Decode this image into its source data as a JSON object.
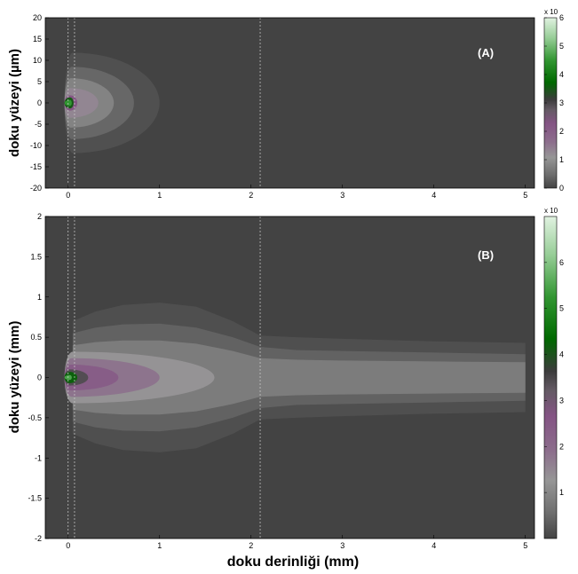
{
  "chart_data": [
    {
      "type": "heatmap",
      "panel_label": "(A)",
      "ylabel": "doku yüzeyi (µm)",
      "xlim": [
        -0.25,
        5.1
      ],
      "ylim": [
        -20,
        20
      ],
      "xticks": [
        "0",
        "1",
        "2",
        "3",
        "4",
        "5"
      ],
      "xtick_values": [
        0,
        1,
        2,
        3,
        4,
        5
      ],
      "yticks": [
        "20",
        "15",
        "10",
        "5",
        "0",
        "-5",
        "-10",
        "-15",
        "-20"
      ],
      "ytick_values": [
        20,
        15,
        10,
        5,
        0,
        -5,
        -10,
        -15,
        -20
      ],
      "layer_boundaries_mm": [
        0,
        0.07,
        2.1
      ],
      "colorbar": {
        "label": "x 10",
        "range": [
          0,
          6
        ],
        "ticks": [
          "6",
          "5",
          "4",
          "3",
          "2",
          "1",
          "0"
        ],
        "tick_values": [
          6,
          5,
          4,
          3,
          2,
          1,
          0
        ]
      },
      "contours": [
        {
          "level": 0.15,
          "peak": 0.05,
          "halfwidth_at_peak": 11.8,
          "depth_extent": 1.0
        },
        {
          "level": 0.4,
          "peak": 0.04,
          "halfwidth_at_peak": 8.5,
          "depth_extent": 0.72
        },
        {
          "level": 0.8,
          "peak": 0.03,
          "halfwidth_at_peak": 5.8,
          "depth_extent": 0.5
        },
        {
          "level": 1.3,
          "peak": 0.02,
          "halfwidth_at_peak": 3.5,
          "depth_extent": 0.33
        },
        {
          "level": 2.2,
          "peak": 0.02,
          "halfwidth_at_peak": 1.8,
          "depth_extent": 0.1
        },
        {
          "level": 3.5,
          "peak": 0.02,
          "halfwidth_at_peak": 1.3,
          "depth_extent": 0.06
        },
        {
          "level": 4.5,
          "peak": 0.02,
          "halfwidth_at_peak": 0.7,
          "depth_extent": 0.04
        }
      ]
    },
    {
      "type": "heatmap",
      "panel_label": "(B)",
      "ylabel": "doku yüzeyi (mm)",
      "xlabel": "doku derinliği (mm)",
      "xlim": [
        -0.25,
        5.1
      ],
      "ylim": [
        -2,
        2
      ],
      "xticks": [
        "0",
        "1",
        "2",
        "3",
        "4",
        "5"
      ],
      "xtick_values": [
        0,
        1,
        2,
        3,
        4,
        5
      ],
      "yticks": [
        "2",
        "1.5",
        "1",
        "0.5",
        "0",
        "-0.5",
        "-1",
        "-1.5",
        "-2"
      ],
      "ytick_values": [
        2,
        1.5,
        1,
        0.5,
        0,
        -0.5,
        -1,
        -1.5,
        -2
      ],
      "layer_boundaries_mm": [
        0,
        0.07,
        2.1
      ],
      "colorbar": {
        "label": "x 10",
        "range": [
          0,
          7
        ],
        "ticks": [
          "6",
          "5",
          "4",
          "3",
          "2",
          "1"
        ],
        "tick_values": [
          6,
          5,
          4,
          3,
          2,
          1
        ]
      },
      "envelopes": [
        {
          "level": 0.15,
          "x": [
            0.05,
            0.3,
            0.6,
            1.0,
            1.4,
            1.8,
            2.1,
            2.5,
            3.0,
            4.0,
            5.0
          ],
          "half_width": [
            0.7,
            0.82,
            0.9,
            0.93,
            0.88,
            0.7,
            0.52,
            0.5,
            0.48,
            0.45,
            0.43
          ]
        },
        {
          "level": 0.4,
          "x": [
            0.05,
            0.3,
            0.6,
            1.0,
            1.4,
            1.8,
            2.1,
            2.5,
            3.0,
            4.0,
            5.0
          ],
          "half_width": [
            0.55,
            0.62,
            0.66,
            0.67,
            0.62,
            0.5,
            0.38,
            0.34,
            0.33,
            0.31,
            0.29
          ]
        },
        {
          "level": 0.8,
          "x": [
            0.05,
            0.3,
            0.6,
            1.0,
            1.4,
            1.8,
            2.1,
            2.5,
            3.0,
            4.0,
            5.0
          ],
          "half_width": [
            0.4,
            0.44,
            0.46,
            0.46,
            0.42,
            0.33,
            0.24,
            0.22,
            0.21,
            0.2,
            0.19
          ]
        }
      ],
      "core": [
        {
          "level": 1.3,
          "peak": 0.05,
          "half_width": 0.32,
          "depth_extent": 1.6
        },
        {
          "level": 1.8,
          "peak": 0.04,
          "half_width": 0.24,
          "depth_extent": 1.0
        },
        {
          "level": 2.4,
          "peak": 0.03,
          "half_width": 0.16,
          "depth_extent": 0.55
        },
        {
          "level": 3.4,
          "peak": 0.02,
          "half_width": 0.1,
          "depth_extent": 0.22
        },
        {
          "level": 4.2,
          "peak": 0.02,
          "half_width": 0.07,
          "depth_extent": 0.1
        },
        {
          "level": 5.5,
          "peak": 0.02,
          "half_width": 0.03,
          "depth_extent": 0.04
        }
      ]
    }
  ],
  "xlabel_shared": "doku derinliği (mm)"
}
